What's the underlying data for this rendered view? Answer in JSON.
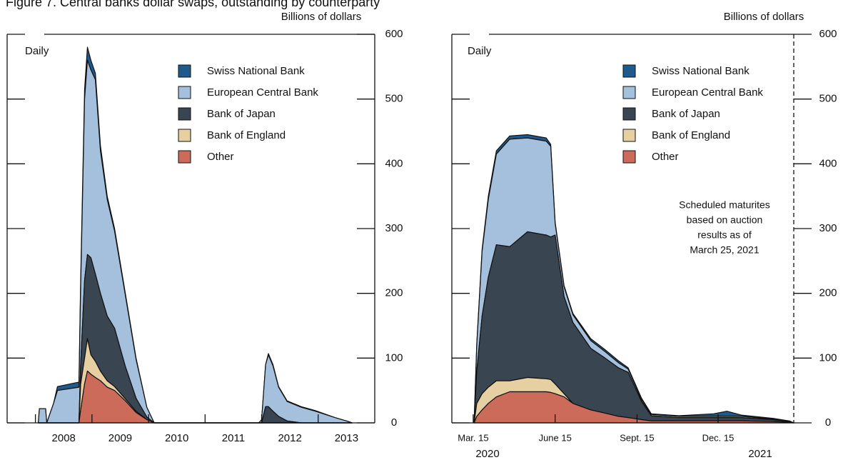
{
  "figure_title": "Figure 7. Central banks dollar swaps, outstanding by counterparty",
  "chart_data": [
    {
      "type": "area",
      "stacked": true,
      "y_axis_label": "Billions of dollars",
      "frequency_label": "Daily",
      "x": [
        2008.05,
        2008.07,
        2008.18,
        2008.2,
        2008.32,
        2008.39,
        2008.77,
        2008.8,
        2008.87,
        2008.92,
        2008.98,
        2009.06,
        2009.15,
        2009.27,
        2009.4,
        2009.59,
        2009.78,
        2009.97,
        2010.1,
        2011.95,
        2012.0,
        2012.07,
        2012.12,
        2012.2,
        2012.3,
        2012.45,
        2012.7,
        2012.95,
        2013.3,
        2013.5,
        2013.6
      ],
      "xlim": [
        2007.5,
        2014
      ],
      "xticks": [
        2008,
        2009,
        2010,
        2011,
        2012,
        2013
      ],
      "ylim": [
        0,
        600
      ],
      "yticks": [
        0,
        100,
        200,
        300,
        400,
        500,
        600
      ],
      "series": [
        {
          "name": "Swiss National Bank",
          "color": "#1f5a8c",
          "values": [
            0,
            0,
            0,
            0,
            0,
            6,
            8,
            10,
            15,
            20,
            15,
            10,
            8,
            5,
            4,
            3,
            2,
            0,
            0,
            0,
            0,
            0,
            2,
            2,
            1,
            1,
            1,
            1,
            0,
            0,
            0
          ]
        },
        {
          "name": "European Central Bank",
          "color": "#a4c0dc",
          "values": [
            0,
            22,
            22,
            0,
            30,
            50,
            55,
            120,
            280,
            300,
            290,
            300,
            220,
            180,
            150,
            110,
            60,
            15,
            0,
            0,
            5,
            65,
            80,
            70,
            45,
            30,
            24,
            18,
            8,
            3,
            0
          ]
        },
        {
          "name": "Bank of Japan",
          "color": "#3a4552",
          "values": [
            0,
            0,
            0,
            0,
            0,
            0,
            0,
            30,
            120,
            130,
            150,
            135,
            120,
            100,
            90,
            50,
            20,
            4,
            0,
            0,
            0,
            25,
            25,
            18,
            10,
            3,
            0,
            0,
            0,
            0,
            0
          ]
        },
        {
          "name": "Bank of England",
          "color": "#e6cfa1",
          "values": [
            0,
            0,
            0,
            0,
            0,
            0,
            0,
            40,
            40,
            50,
            30,
            25,
            15,
            10,
            6,
            3,
            2,
            0,
            0,
            0,
            0,
            0,
            0,
            0,
            0,
            0,
            0,
            0,
            0,
            0,
            0
          ]
        },
        {
          "name": "Other",
          "color": "#cd6b5a",
          "values": [
            0,
            0,
            0,
            0,
            0,
            0,
            0,
            20,
            60,
            80,
            75,
            70,
            65,
            55,
            50,
            34,
            16,
            5,
            0,
            0,
            0,
            0,
            0,
            0,
            0,
            0,
            0,
            0,
            0,
            0,
            0
          ]
        }
      ]
    },
    {
      "type": "area",
      "stacked": true,
      "y_axis_label": "Billions of dollars",
      "frequency_label": "Daily",
      "x": [
        "2020-03-16",
        "2020-03-19",
        "2020-03-25",
        "2020-04-01",
        "2020-04-10",
        "2020-04-25",
        "2020-05-15",
        "2020-06-05",
        "2020-06-10",
        "2020-06-15",
        "2020-06-25",
        "2020-07-05",
        "2020-07-25",
        "2020-08-10",
        "2020-08-25",
        "2020-09-05",
        "2020-09-20",
        "2020-10-01",
        "2020-11-01",
        "2020-12-10",
        "2020-12-25",
        "2021-01-10",
        "2021-02-15",
        "2021-03-05",
        "2021-03-10"
      ],
      "xlim": [
        "2020-02-20",
        "2021-03-10"
      ],
      "xticks": [
        {
          "value": "2020-03-15",
          "label": "Mar. 15"
        },
        {
          "value": "2020-06-15",
          "label": "June 15"
        },
        {
          "value": "2020-09-15",
          "label": "Sept. 15"
        },
        {
          "value": "2020-12-15",
          "label": "Dec. 15"
        }
      ],
      "year_labels": [
        "2020",
        "2021"
      ],
      "ylim": [
        0,
        600
      ],
      "yticks": [
        0,
        100,
        200,
        300,
        400,
        500,
        600
      ],
      "annotation": [
        "Scheduled maturites",
        "based on auction",
        "results as of",
        "March 25, 2021"
      ],
      "series": [
        {
          "name": "Swiss National Bank",
          "color": "#1f5a8c",
          "values": [
            0,
            2,
            3,
            5,
            5,
            5,
            5,
            5,
            3,
            2,
            2,
            2,
            3,
            3,
            3,
            2,
            2,
            1,
            1,
            4,
            8,
            2,
            1,
            0,
            0
          ]
        },
        {
          "name": "European Central Bank",
          "color": "#a4c0dc",
          "values": [
            0,
            40,
            100,
            120,
            140,
            166,
            145,
            145,
            140,
            18,
            15,
            12,
            12,
            10,
            8,
            5,
            3,
            2,
            2,
            2,
            2,
            2,
            1,
            1,
            0
          ]
        },
        {
          "name": "Bank of Japan",
          "color": "#3a4552",
          "values": [
            0,
            50,
            120,
            170,
            210,
            207,
            225,
            222,
            220,
            230,
            150,
            125,
            95,
            85,
            75,
            70,
            28,
            8,
            5,
            5,
            5,
            5,
            3,
            1,
            0
          ]
        },
        {
          "name": "Bank of England",
          "color": "#e6cfa1",
          "values": [
            0,
            20,
            25,
            25,
            25,
            17,
            22,
            20,
            20,
            15,
            5,
            0,
            0,
            0,
            0,
            0,
            0,
            0,
            0,
            0,
            0,
            0,
            0,
            0,
            0
          ]
        },
        {
          "name": "Other",
          "color": "#cd6b5a",
          "values": [
            0,
            10,
            20,
            30,
            40,
            48,
            48,
            48,
            47,
            45,
            40,
            30,
            20,
            15,
            10,
            8,
            5,
            3,
            3,
            3,
            3,
            3,
            2,
            1,
            0
          ]
        }
      ]
    }
  ]
}
